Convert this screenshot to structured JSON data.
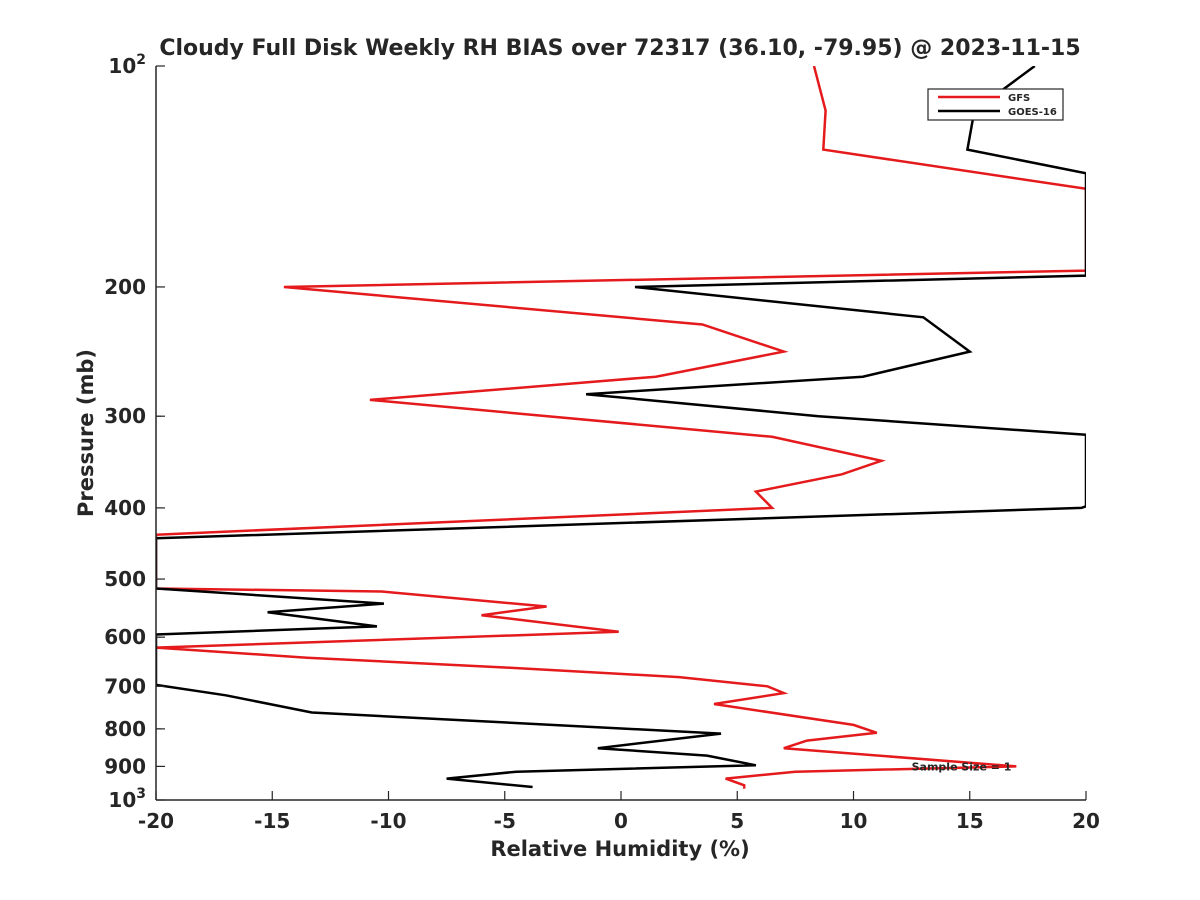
{
  "chart_data": {
    "type": "line",
    "title": "Cloudy Full Disk Weekly RH BIAS over 72317 (36.10, -79.95) @ 2023-11-15",
    "xlabel": "Relative Humidity (%)",
    "ylabel": "Pressure (mb)",
    "xlim": [
      -20,
      20
    ],
    "ylim": [
      100,
      1000
    ],
    "yscale": "log",
    "y_reversed": true,
    "x_ticks": [
      -20,
      -15,
      -10,
      -5,
      0,
      5,
      10,
      15,
      20
    ],
    "x_tick_labels": [
      "-20",
      "-15",
      "-10",
      "-5",
      "0",
      "5",
      "10",
      "15",
      "20"
    ],
    "y_ticks": [
      {
        "value": 100,
        "base": "10",
        "exp": "2"
      },
      {
        "value": 200,
        "label": "200"
      },
      {
        "value": 300,
        "label": "300"
      },
      {
        "value": 400,
        "label": "400"
      },
      {
        "value": 500,
        "label": "500"
      },
      {
        "value": 600,
        "label": "600"
      },
      {
        "value": 700,
        "label": "700"
      },
      {
        "value": 800,
        "label": "800"
      },
      {
        "value": 900,
        "label": "900"
      },
      {
        "value": 1000,
        "base": "10",
        "exp": "3"
      }
    ],
    "grid": false,
    "legend_position": "top-right",
    "annotation": "Sample Size = 1",
    "annotation_pos": {
      "x": 12.5,
      "y": 900
    },
    "series": [
      {
        "name": "GFS",
        "color": "#e41a1c",
        "points": [
          [
            8.3,
            100
          ],
          [
            8.8,
            115
          ],
          [
            8.7,
            130
          ],
          [
            20,
            147
          ],
          [
            20,
            190
          ],
          [
            -14.5,
            200
          ],
          [
            3.5,
            225
          ],
          [
            7.0,
            245
          ],
          [
            1.5,
            265
          ],
          [
            -10.8,
            285
          ],
          [
            6.5,
            320
          ],
          [
            11.2,
            345
          ],
          [
            9.5,
            360
          ],
          [
            5.8,
            380
          ],
          [
            6.5,
            400
          ],
          [
            -20,
            435
          ],
          [
            -20,
            515
          ],
          [
            -10.3,
            520
          ],
          [
            -3.2,
            545
          ],
          [
            -6.0,
            560
          ],
          [
            -0.1,
            590
          ],
          [
            -20,
            620
          ],
          [
            -20,
            620
          ],
          [
            -13.5,
            640
          ],
          [
            -5.0,
            660
          ],
          [
            2.5,
            680
          ],
          [
            6.3,
            700
          ],
          [
            7.0,
            715
          ],
          [
            4.0,
            740
          ],
          [
            10.0,
            790
          ],
          [
            11.0,
            810
          ],
          [
            8.0,
            830
          ],
          [
            7.0,
            850
          ],
          [
            17.0,
            900
          ],
          [
            7.5,
            915
          ],
          [
            4.5,
            935
          ],
          [
            5.3,
            955
          ],
          [
            5.3,
            965
          ]
        ]
      },
      {
        "name": "GOES-16",
        "color": "#000000",
        "points": [
          [
            17.8,
            100
          ],
          [
            15.2,
            115
          ],
          [
            14.9,
            130
          ],
          [
            20,
            140
          ],
          [
            20,
            193
          ],
          [
            0.6,
            200
          ],
          [
            13.0,
            220
          ],
          [
            15.0,
            245
          ],
          [
            10.4,
            265
          ],
          [
            -1.5,
            280
          ],
          [
            8.5,
            300
          ],
          [
            20,
            318
          ],
          [
            20,
            398
          ],
          [
            19.8,
            400
          ],
          [
            -20,
            440
          ],
          [
            -20,
            515
          ],
          [
            -10.2,
            540
          ],
          [
            -15.2,
            555
          ],
          [
            -10.5,
            580
          ],
          [
            -20,
            595
          ],
          [
            -20,
            697
          ],
          [
            -17.0,
            720
          ],
          [
            -13.3,
            760
          ],
          [
            4.3,
            812
          ],
          [
            -1.0,
            850
          ],
          [
            3.7,
            870
          ],
          [
            5.8,
            897
          ],
          [
            -4.5,
            915
          ],
          [
            -7.5,
            935
          ],
          [
            -3.8,
            960
          ]
        ]
      }
    ]
  }
}
